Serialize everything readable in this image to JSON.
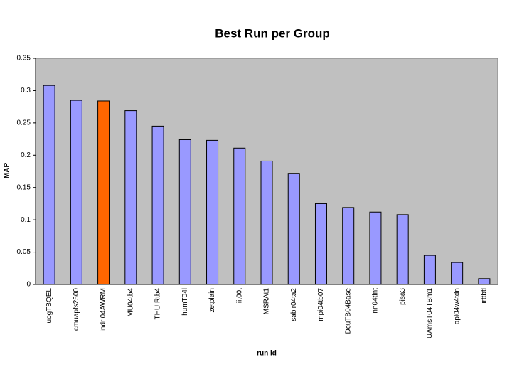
{
  "chart_data": {
    "type": "bar",
    "title": "Best Run per Group",
    "x_label": "run id",
    "y_label": "MAP",
    "categories": [
      "uogTBQEL",
      "cmuapfs2500",
      "indri04AWRM",
      "MU04tb4",
      "THUIRtb4",
      "humT04l",
      "zetplain",
      "iit00t",
      "MSRAt1",
      "sabir04ta2",
      "mpi04tb07",
      "DcuTB04Base",
      "nn04tint",
      "pisa3",
      "UAmsT04TBm1",
      "apl04w4tdn",
      "irttbtl"
    ],
    "values": [
      0.308,
      0.285,
      0.284,
      0.269,
      0.245,
      0.224,
      0.223,
      0.211,
      0.191,
      0.172,
      0.125,
      0.119,
      0.112,
      0.108,
      0.045,
      0.034,
      0.009
    ],
    "colors": [
      "#9999ff",
      "#9999ff",
      "#ff6600",
      "#9999ff",
      "#9999ff",
      "#9999ff",
      "#9999ff",
      "#9999ff",
      "#9999ff",
      "#9999ff",
      "#9999ff",
      "#9999ff",
      "#9999ff",
      "#9999ff",
      "#9999ff",
      "#9999ff",
      "#9999ff"
    ],
    "ylim": [
      0,
      0.35
    ],
    "yticks": [
      0,
      0.05,
      0.1,
      0.15,
      0.2,
      0.25,
      0.3,
      0.35
    ],
    "grid": false
  }
}
